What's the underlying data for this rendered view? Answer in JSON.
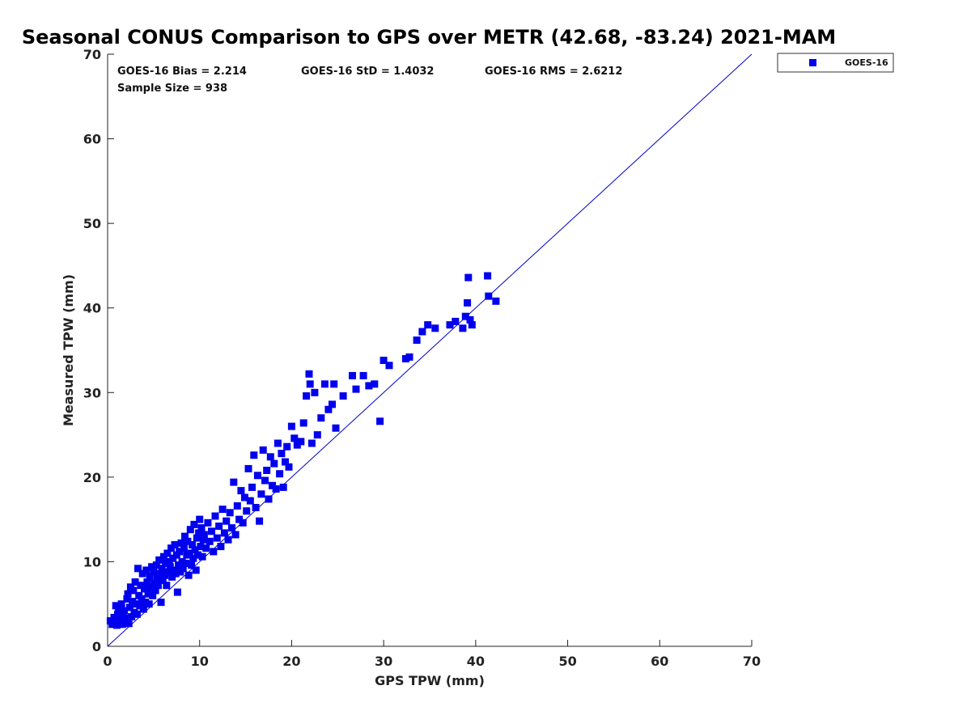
{
  "chart_data": {
    "type": "scatter",
    "title": "Seasonal CONUS Comparison to GPS over METR (42.68, -83.24) 2021-MAM",
    "xlabel": "GPS TPW (mm)",
    "ylabel": "Measured TPW (mm)",
    "xlim": [
      0,
      70
    ],
    "ylim": [
      0,
      70
    ],
    "xticks": [
      "0",
      "10",
      "20",
      "30",
      "40",
      "50",
      "60",
      "70"
    ],
    "yticks": [
      "0",
      "10",
      "20",
      "30",
      "40",
      "50",
      "60",
      "70"
    ],
    "grid": false,
    "legend_position": "outside-top-right",
    "stats": {
      "bias": "GOES-16 Bias = 2.214",
      "std": "GOES-16 StD = 1.4032",
      "rms": "GOES-16 RMS = 2.6212",
      "sample": "Sample Size = 938"
    },
    "reference_line": {
      "x": [
        0,
        70
      ],
      "y": [
        0,
        70
      ],
      "color": "#0000cc"
    },
    "series": [
      {
        "name": "GOES-16",
        "color": "#0000ee",
        "points": [
          [
            0.3,
            3.0
          ],
          [
            0.5,
            2.6
          ],
          [
            0.7,
            3.4
          ],
          [
            0.9,
            4.8
          ],
          [
            1.0,
            2.5
          ],
          [
            1.1,
            3.8
          ],
          [
            1.2,
            4.4
          ],
          [
            1.3,
            2.8
          ],
          [
            1.4,
            3.2
          ],
          [
            1.5,
            5.0
          ],
          [
            1.6,
            2.6
          ],
          [
            1.7,
            3.6
          ],
          [
            1.8,
            4.2
          ],
          [
            1.9,
            2.9
          ],
          [
            2.0,
            3.3
          ],
          [
            2.1,
            5.6
          ],
          [
            2.2,
            6.2
          ],
          [
            2.3,
            2.7
          ],
          [
            2.4,
            4.6
          ],
          [
            2.5,
            7.0
          ],
          [
            2.6,
            3.5
          ],
          [
            2.7,
            5.3
          ],
          [
            2.8,
            6.6
          ],
          [
            2.9,
            4.0
          ],
          [
            3.0,
            7.6
          ],
          [
            3.1,
            5.0
          ],
          [
            3.2,
            3.8
          ],
          [
            3.3,
            9.2
          ],
          [
            3.4,
            6.0
          ],
          [
            3.5,
            4.8
          ],
          [
            3.6,
            7.2
          ],
          [
            3.7,
            5.6
          ],
          [
            3.8,
            8.6
          ],
          [
            3.9,
            4.4
          ],
          [
            4.0,
            6.8
          ],
          [
            4.1,
            5.2
          ],
          [
            4.2,
            9.0
          ],
          [
            4.3,
            7.6
          ],
          [
            4.4,
            6.2
          ],
          [
            4.5,
            5.0
          ],
          [
            4.6,
            8.2
          ],
          [
            4.7,
            7.0
          ],
          [
            4.8,
            9.4
          ],
          [
            4.9,
            6.0
          ],
          [
            5.0,
            8.8
          ],
          [
            5.1,
            7.4
          ],
          [
            5.2,
            6.6
          ],
          [
            5.3,
            9.6
          ],
          [
            5.4,
            8.0
          ],
          [
            5.5,
            7.2
          ],
          [
            5.6,
            10.2
          ],
          [
            5.7,
            8.6
          ],
          [
            5.8,
            5.2
          ],
          [
            5.9,
            9.2
          ],
          [
            6.0,
            7.8
          ],
          [
            6.1,
            10.6
          ],
          [
            6.2,
            8.4
          ],
          [
            6.3,
            9.8
          ],
          [
            6.4,
            7.2
          ],
          [
            6.5,
            11.0
          ],
          [
            6.6,
            8.8
          ],
          [
            6.7,
            10.0
          ],
          [
            6.8,
            9.4
          ],
          [
            6.9,
            11.6
          ],
          [
            7.0,
            8.2
          ],
          [
            7.1,
            10.4
          ],
          [
            7.2,
            9.0
          ],
          [
            7.3,
            12.0
          ],
          [
            7.4,
            8.6
          ],
          [
            7.5,
            10.8
          ],
          [
            7.6,
            6.4
          ],
          [
            7.7,
            9.6
          ],
          [
            7.8,
            11.2
          ],
          [
            7.9,
            8.8
          ],
          [
            8.0,
            12.2
          ],
          [
            8.1,
            10.0
          ],
          [
            8.2,
            9.2
          ],
          [
            8.3,
            11.6
          ],
          [
            8.4,
            13.0
          ],
          [
            8.5,
            9.8
          ],
          [
            8.6,
            10.8
          ],
          [
            8.7,
            12.4
          ],
          [
            8.8,
            8.4
          ],
          [
            8.9,
            11.0
          ],
          [
            9.0,
            13.8
          ],
          [
            9.1,
            9.6
          ],
          [
            9.2,
            12.0
          ],
          [
            9.3,
            10.4
          ],
          [
            9.4,
            14.4
          ],
          [
            9.5,
            11.4
          ],
          [
            9.6,
            9.0
          ],
          [
            9.7,
            12.8
          ],
          [
            9.8,
            10.8
          ],
          [
            9.9,
            13.4
          ],
          [
            10.0,
            15.0
          ],
          [
            10.1,
            11.8
          ],
          [
            10.2,
            14.0
          ],
          [
            10.3,
            10.6
          ],
          [
            10.4,
            12.6
          ],
          [
            10.5,
            13.2
          ],
          [
            10.7,
            11.6
          ],
          [
            10.9,
            14.6
          ],
          [
            11.1,
            12.4
          ],
          [
            11.3,
            13.6
          ],
          [
            11.5,
            11.2
          ],
          [
            11.7,
            15.4
          ],
          [
            11.9,
            12.8
          ],
          [
            12.1,
            14.2
          ],
          [
            12.3,
            11.8
          ],
          [
            12.5,
            16.2
          ],
          [
            12.7,
            13.4
          ],
          [
            12.9,
            14.8
          ],
          [
            13.1,
            12.6
          ],
          [
            13.3,
            15.8
          ],
          [
            13.5,
            14.0
          ],
          [
            13.7,
            19.4
          ],
          [
            13.9,
            13.2
          ],
          [
            14.1,
            16.6
          ],
          [
            14.3,
            15.0
          ],
          [
            14.5,
            18.4
          ],
          [
            14.7,
            14.6
          ],
          [
            14.9,
            17.6
          ],
          [
            15.1,
            16.0
          ],
          [
            15.3,
            21.0
          ],
          [
            15.5,
            17.2
          ],
          [
            15.7,
            18.8
          ],
          [
            15.9,
            22.6
          ],
          [
            16.1,
            16.4
          ],
          [
            16.3,
            20.2
          ],
          [
            16.5,
            14.8
          ],
          [
            16.7,
            18.0
          ],
          [
            16.9,
            23.2
          ],
          [
            17.1,
            19.6
          ],
          [
            17.3,
            20.8
          ],
          [
            17.5,
            17.4
          ],
          [
            17.7,
            22.4
          ],
          [
            17.9,
            19.0
          ],
          [
            18.1,
            21.6
          ],
          [
            18.3,
            18.6
          ],
          [
            18.5,
            24.0
          ],
          [
            18.7,
            20.4
          ],
          [
            18.9,
            22.8
          ],
          [
            19.1,
            18.8
          ],
          [
            19.3,
            21.8
          ],
          [
            19.5,
            23.6
          ],
          [
            19.7,
            21.2
          ],
          [
            20.0,
            26.0
          ],
          [
            20.3,
            24.6
          ],
          [
            20.6,
            23.8
          ],
          [
            21.0,
            24.2
          ],
          [
            21.3,
            26.4
          ],
          [
            21.6,
            29.6
          ],
          [
            21.9,
            32.2
          ],
          [
            22.0,
            31.0
          ],
          [
            22.2,
            24.0
          ],
          [
            22.5,
            30.0
          ],
          [
            22.8,
            25.0
          ],
          [
            23.2,
            27.0
          ],
          [
            23.6,
            31.0
          ],
          [
            24.0,
            28.0
          ],
          [
            24.4,
            28.6
          ],
          [
            24.6,
            31.0
          ],
          [
            24.8,
            25.8
          ],
          [
            25.6,
            29.6
          ],
          [
            26.6,
            32.0
          ],
          [
            27.0,
            30.4
          ],
          [
            27.8,
            32.0
          ],
          [
            28.4,
            30.8
          ],
          [
            29.0,
            31.0
          ],
          [
            29.6,
            26.6
          ],
          [
            30.0,
            33.8
          ],
          [
            30.6,
            33.2
          ],
          [
            32.4,
            34.0
          ],
          [
            32.8,
            34.2
          ],
          [
            33.6,
            36.2
          ],
          [
            34.2,
            37.2
          ],
          [
            34.8,
            38.0
          ],
          [
            35.6,
            37.6
          ],
          [
            37.2,
            38.0
          ],
          [
            37.8,
            38.4
          ],
          [
            38.6,
            37.6
          ],
          [
            38.9,
            39.0
          ],
          [
            39.1,
            40.6
          ],
          [
            39.2,
            43.6
          ],
          [
            39.4,
            38.6
          ],
          [
            39.6,
            38.0
          ],
          [
            41.3,
            43.8
          ],
          [
            41.4,
            41.4
          ],
          [
            42.2,
            40.8
          ]
        ]
      }
    ]
  }
}
